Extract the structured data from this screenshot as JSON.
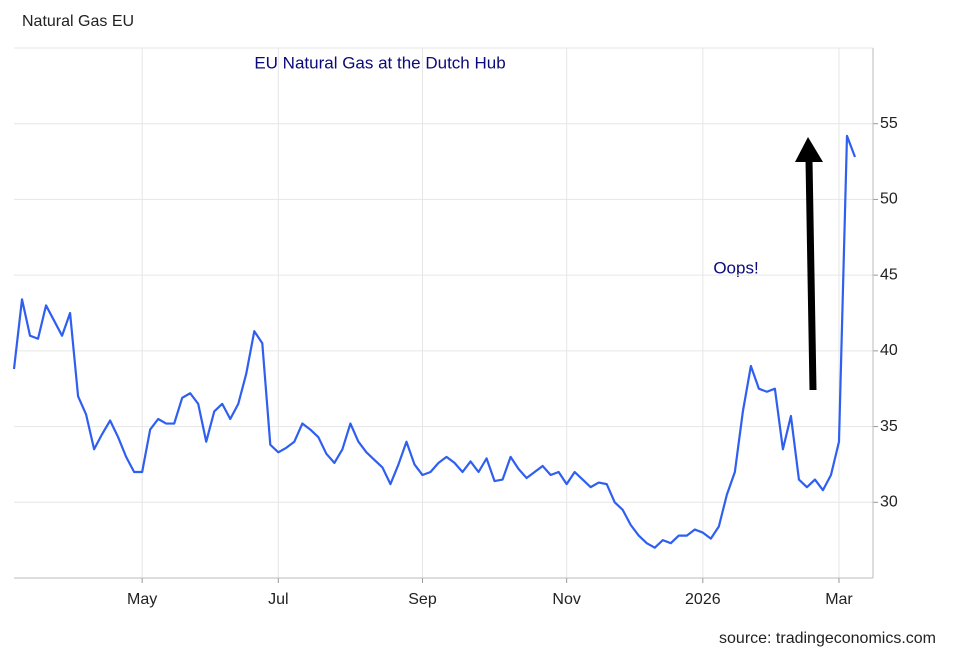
{
  "chart_data": {
    "type": "line",
    "title": "EU Natural Gas at the Dutch Hub",
    "annotation": "Oops!",
    "source": "source: tradingeconomics.com",
    "categories": [
      null,
      null,
      null,
      null,
      null,
      null,
      null,
      null,
      null,
      null,
      null,
      null,
      null,
      null,
      null,
      null,
      "May",
      null,
      null,
      null,
      null,
      null,
      null,
      null,
      null,
      null,
      null,
      null,
      null,
      null,
      null,
      null,
      null,
      "Jul",
      null,
      null,
      null,
      null,
      null,
      null,
      null,
      null,
      null,
      null,
      null,
      null,
      null,
      null,
      null,
      null,
      null,
      "Sep",
      null,
      null,
      null,
      null,
      null,
      null,
      null,
      null,
      null,
      null,
      null,
      null,
      null,
      null,
      null,
      null,
      null,
      "Nov",
      null,
      null,
      null,
      null,
      null,
      null,
      null,
      null,
      null,
      null,
      null,
      null,
      null,
      null,
      null,
      null,
      "2026",
      null,
      null,
      null,
      null,
      null,
      null,
      null,
      null,
      null,
      null,
      null,
      null,
      null,
      null,
      null,
      null,
      "Mar",
      null,
      null
    ],
    "series": [
      {
        "name": "Natural Gas EU",
        "color": "#2f5ff0",
        "values": [
          38.8,
          43.4,
          41.0,
          40.8,
          43.0,
          42.0,
          41.0,
          42.5,
          37.0,
          35.8,
          33.5,
          34.5,
          35.4,
          34.3,
          33.0,
          32.0,
          32.0,
          34.8,
          35.5,
          35.2,
          35.2,
          36.9,
          37.2,
          36.5,
          34.0,
          36.0,
          36.5,
          35.5,
          36.5,
          38.5,
          41.3,
          40.5,
          33.8,
          33.3,
          33.6,
          34.0,
          35.2,
          34.8,
          34.3,
          33.2,
          32.6,
          33.5,
          35.2,
          34.0,
          33.3,
          32.8,
          32.3,
          31.2,
          32.5,
          34.0,
          32.5,
          31.8,
          32.0,
          32.6,
          33.0,
          32.6,
          32.0,
          32.7,
          32.0,
          32.9,
          31.4,
          31.5,
          33.0,
          32.2,
          31.6,
          32.0,
          32.4,
          31.8,
          32.0,
          31.2,
          32.0,
          31.5,
          31.0,
          31.3,
          31.2,
          30.0,
          29.5,
          28.5,
          27.8,
          27.3,
          27.0,
          27.5,
          27.3,
          27.8,
          27.8,
          28.2,
          28.0,
          27.6,
          28.4,
          30.5,
          32.0,
          36.0,
          39.0,
          37.5,
          37.3,
          37.5,
          33.5,
          35.7,
          31.5,
          31.0,
          31.5,
          30.8,
          31.8,
          34.0,
          54.2,
          52.8
        ]
      }
    ],
    "ylim": [
      25,
      60
    ],
    "yticks": [
      30,
      35,
      40,
      45,
      50,
      55
    ],
    "grid": true
  }
}
